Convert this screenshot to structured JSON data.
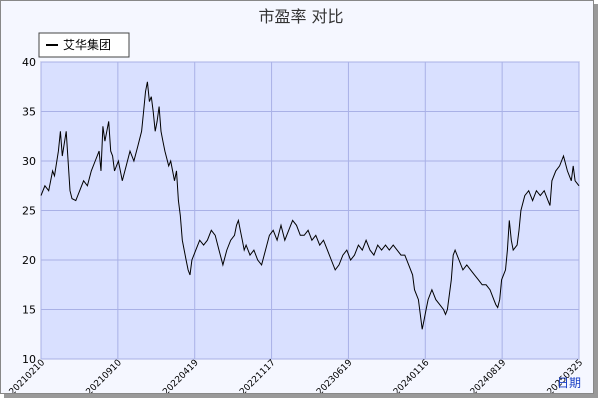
{
  "chart_data": {
    "type": "line",
    "title": "市盈率  对比",
    "xlabel": "日期",
    "ylabel": "",
    "ylim": [
      10,
      40
    ],
    "y_ticks": [
      10,
      15,
      20,
      25,
      30,
      35,
      40
    ],
    "grid": true,
    "legend": "top-left",
    "x_tick_labels": [
      "20210210",
      "20210910",
      "20220419",
      "20221117",
      "20230619",
      "20240116",
      "20240819",
      "20250325"
    ],
    "series": [
      {
        "name": "艾华集团",
        "color": "#000000",
        "values": [
          [
            0,
            26.5
          ],
          [
            2,
            27.5
          ],
          [
            4,
            27
          ],
          [
            6,
            29
          ],
          [
            7,
            28.5
          ],
          [
            9,
            31
          ],
          [
            10,
            33
          ],
          [
            11,
            30.5
          ],
          [
            13,
            33
          ],
          [
            14,
            30
          ],
          [
            15,
            27
          ],
          [
            16,
            26.2
          ],
          [
            18,
            26
          ],
          [
            20,
            27
          ],
          [
            22,
            28
          ],
          [
            24,
            27.5
          ],
          [
            26,
            29
          ],
          [
            28,
            30
          ],
          [
            30,
            31
          ],
          [
            31,
            29
          ],
          [
            32,
            33.5
          ],
          [
            33,
            32
          ],
          [
            35,
            34
          ],
          [
            36,
            31
          ],
          [
            37,
            30.5
          ],
          [
            38,
            29
          ],
          [
            40,
            30
          ],
          [
            42,
            28
          ],
          [
            44,
            29.5
          ],
          [
            46,
            31
          ],
          [
            48,
            30
          ],
          [
            50,
            31.5
          ],
          [
            52,
            33
          ],
          [
            53,
            35
          ],
          [
            54,
            37
          ],
          [
            55,
            38
          ],
          [
            56,
            36
          ],
          [
            57,
            36.5
          ],
          [
            58,
            35
          ],
          [
            59,
            33
          ],
          [
            60,
            34
          ],
          [
            61,
            35.5
          ],
          [
            62,
            33
          ],
          [
            63,
            32
          ],
          [
            64,
            31
          ],
          [
            66,
            29.5
          ],
          [
            67,
            30
          ],
          [
            68,
            29
          ],
          [
            69,
            28
          ],
          [
            70,
            29
          ],
          [
            71,
            26
          ],
          [
            72,
            24.5
          ],
          [
            73,
            22
          ],
          [
            74,
            21
          ],
          [
            75,
            20
          ],
          [
            76,
            19
          ],
          [
            77,
            18.5
          ],
          [
            78,
            20
          ],
          [
            80,
            21
          ],
          [
            82,
            22
          ],
          [
            84,
            21.5
          ],
          [
            86,
            22
          ],
          [
            88,
            23
          ],
          [
            90,
            22.5
          ],
          [
            92,
            21
          ],
          [
            94,
            19.5
          ],
          [
            96,
            21
          ],
          [
            98,
            22
          ],
          [
            100,
            22.5
          ],
          [
            101,
            23.5
          ],
          [
            102,
            24
          ],
          [
            103,
            23
          ],
          [
            104,
            22
          ],
          [
            105,
            21
          ],
          [
            106,
            21.5
          ],
          [
            108,
            20.5
          ],
          [
            110,
            21
          ],
          [
            112,
            20
          ],
          [
            114,
            19.5
          ],
          [
            116,
            21
          ],
          [
            118,
            22.5
          ],
          [
            120,
            23
          ],
          [
            122,
            22
          ],
          [
            124,
            23.5
          ],
          [
            126,
            22
          ],
          [
            128,
            23
          ],
          [
            130,
            24
          ],
          [
            132,
            23.5
          ],
          [
            134,
            22.5
          ],
          [
            136,
            22.5
          ],
          [
            138,
            23
          ],
          [
            140,
            22
          ],
          [
            142,
            22.5
          ],
          [
            144,
            21.5
          ],
          [
            146,
            22
          ],
          [
            148,
            21
          ],
          [
            150,
            20
          ],
          [
            152,
            19
          ],
          [
            154,
            19.5
          ],
          [
            156,
            20.5
          ],
          [
            158,
            21
          ],
          [
            160,
            20
          ],
          [
            162,
            20.5
          ],
          [
            164,
            21.5
          ],
          [
            166,
            21
          ],
          [
            168,
            22
          ],
          [
            170,
            21
          ],
          [
            172,
            20.5
          ],
          [
            174,
            21.5
          ],
          [
            176,
            21
          ],
          [
            178,
            21.5
          ],
          [
            180,
            21
          ],
          [
            182,
            21.5
          ],
          [
            184,
            21
          ],
          [
            186,
            20.5
          ],
          [
            188,
            20.5
          ],
          [
            190,
            19.5
          ],
          [
            192,
            18.5
          ],
          [
            193,
            17
          ],
          [
            195,
            16
          ],
          [
            196,
            14.5
          ],
          [
            197,
            13
          ],
          [
            198,
            14
          ],
          [
            199,
            15
          ],
          [
            200,
            16
          ],
          [
            202,
            17
          ],
          [
            204,
            16
          ],
          [
            206,
            15.5
          ],
          [
            208,
            15
          ],
          [
            209,
            14.5
          ],
          [
            210,
            15
          ],
          [
            212,
            18
          ],
          [
            213,
            20.5
          ],
          [
            214,
            21
          ],
          [
            216,
            20
          ],
          [
            218,
            19
          ],
          [
            220,
            19.5
          ],
          [
            222,
            19
          ],
          [
            224,
            18.5
          ],
          [
            226,
            18
          ],
          [
            228,
            17.5
          ],
          [
            230,
            17.5
          ],
          [
            232,
            17
          ],
          [
            234,
            16
          ],
          [
            235,
            15.5
          ],
          [
            236,
            15.2
          ],
          [
            237,
            16
          ],
          [
            238,
            18
          ],
          [
            240,
            19
          ],
          [
            241,
            21
          ],
          [
            242,
            24
          ],
          [
            243,
            22
          ],
          [
            244,
            21
          ],
          [
            246,
            21.5
          ],
          [
            247,
            23
          ],
          [
            248,
            25
          ],
          [
            250,
            26.5
          ],
          [
            252,
            27
          ],
          [
            254,
            26
          ],
          [
            256,
            27
          ],
          [
            258,
            26.5
          ],
          [
            260,
            27
          ],
          [
            262,
            26
          ],
          [
            263,
            25.5
          ],
          [
            264,
            28
          ],
          [
            266,
            29
          ],
          [
            268,
            29.5
          ],
          [
            270,
            30.5
          ],
          [
            272,
            29
          ],
          [
            274,
            28
          ],
          [
            275,
            29.5
          ],
          [
            276,
            28
          ],
          [
            278,
            27.5
          ]
        ]
      }
    ]
  }
}
